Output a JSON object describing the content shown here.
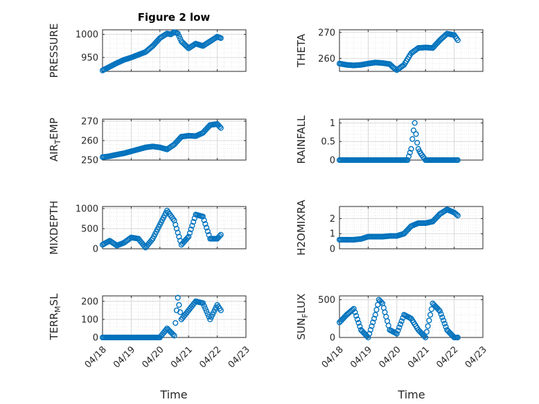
{
  "title": "Figure 2 low",
  "marker_color": "#0072bd",
  "x_tick_labels": [
    "04/18",
    "04/19",
    "04/20",
    "04/21",
    "04/22",
    "04/23"
  ],
  "x_axis_label": "Time",
  "chart_data": [
    {
      "type": "scatter",
      "panel": "top-left",
      "ylabel": "PRESSURE",
      "ylim": [
        920,
        1010
      ],
      "yticks": [
        950,
        1000
      ],
      "ytick_labels": [
        "950",
        "1000"
      ],
      "grid": true,
      "show_x_ticks": false,
      "x": [
        "04/18 00:00",
        "04/18 06:00",
        "04/18 12:00",
        "04/18 18:00",
        "04/19 00:00",
        "04/19 06:00",
        "04/19 12:00",
        "04/19 18:00",
        "04/20 00:00",
        "04/20 06:00",
        "04/20 09:00",
        "04/20 12:00",
        "04/20 15:00",
        "04/20 18:00",
        "04/21 00:00",
        "04/21 06:00",
        "04/21 12:00",
        "04/21 18:00",
        "04/22 00:00",
        "04/22 03:00"
      ],
      "y": [
        922,
        930,
        938,
        945,
        950,
        956,
        962,
        975,
        992,
        1002,
        1000,
        1005,
        1002,
        985,
        970,
        980,
        975,
        985,
        995,
        992
      ]
    },
    {
      "type": "scatter",
      "panel": "top-right",
      "ylabel": "THETA",
      "ylim": [
        255,
        271
      ],
      "yticks": [
        260,
        270
      ],
      "ytick_labels": [
        "260",
        "270"
      ],
      "grid": true,
      "show_x_ticks": false,
      "x": [
        "04/18 00:00",
        "04/18 06:00",
        "04/18 12:00",
        "04/18 18:00",
        "04/19 00:00",
        "04/19 06:00",
        "04/19 12:00",
        "04/19 18:00",
        "04/19 21:00",
        "04/20 00:00",
        "04/20 06:00",
        "04/20 12:00",
        "04/20 18:00",
        "04/21 00:00",
        "04/21 06:00",
        "04/21 12:00",
        "04/21 18:00",
        "04/22 00:00",
        "04/22 03:00"
      ],
      "y": [
        258,
        257.5,
        257.3,
        257.5,
        258,
        258.4,
        258.2,
        257.8,
        256.5,
        255.5,
        257.5,
        262,
        264,
        264.2,
        264,
        267,
        269.5,
        269,
        267
      ]
    },
    {
      "type": "scatter",
      "panel": "row2-left",
      "ylabel": "AIR_TEMP",
      "ylim": [
        250,
        271
      ],
      "yticks": [
        250,
        260,
        270
      ],
      "ytick_labels": [
        "250",
        "260",
        "270"
      ],
      "grid": true,
      "show_x_ticks": false,
      "x": [
        "04/18 00:00",
        "04/18 06:00",
        "04/18 12:00",
        "04/18 18:00",
        "04/19 00:00",
        "04/19 06:00",
        "04/19 12:00",
        "04/19 18:00",
        "04/20 00:00",
        "04/20 06:00",
        "04/20 12:00",
        "04/20 18:00",
        "04/21 00:00",
        "04/21 06:00",
        "04/21 12:00",
        "04/21 18:00",
        "04/22 00:00",
        "04/22 03:00"
      ],
      "y": [
        251.5,
        252,
        252.8,
        253.5,
        254.5,
        255.5,
        256.5,
        257,
        256.5,
        255.5,
        258,
        262,
        262.5,
        262.3,
        264,
        268,
        268.5,
        266.5
      ]
    },
    {
      "type": "scatter",
      "panel": "row2-right",
      "ylabel": "RAINFALL",
      "ylim": [
        0,
        1.1
      ],
      "yticks": [
        0,
        0.5,
        1
      ],
      "ytick_labels": [
        "0",
        "0.5",
        "1"
      ],
      "grid": true,
      "show_x_ticks": false,
      "x": [
        "04/18 00:00",
        "04/18 12:00",
        "04/19 00:00",
        "04/19 12:00",
        "04/20 00:00",
        "04/20 09:00",
        "04/20 12:00",
        "04/20 13:30",
        "04/20 15:00",
        "04/20 16:30",
        "04/20 18:00",
        "04/20 19:30",
        "04/21 00:00",
        "04/21 12:00",
        "04/22 00:00",
        "04/22 03:00"
      ],
      "y": [
        0,
        0,
        0,
        0,
        0,
        0,
        0.3,
        0.7,
        1.0,
        0.55,
        0.3,
        0.2,
        0,
        0,
        0,
        0
      ]
    },
    {
      "type": "scatter",
      "panel": "row3-left",
      "ylabel": "MIXDEPTH",
      "ylim": [
        0,
        1050
      ],
      "yticks": [
        0,
        500,
        1000
      ],
      "ytick_labels": [
        "0",
        "500",
        "1000"
      ],
      "grid": true,
      "show_x_ticks": false,
      "x": [
        "04/18 00:00",
        "04/18 06:00",
        "04/18 12:00",
        "04/18 18:00",
        "04/19 00:00",
        "04/19 06:00",
        "04/19 12:00",
        "04/19 18:00",
        "04/20 00:00",
        "04/20 06:00",
        "04/20 12:00",
        "04/20 18:00",
        "04/21 00:00",
        "04/21 06:00",
        "04/21 12:00",
        "04/21 18:00",
        "04/22 00:00",
        "04/22 03:00"
      ],
      "y": [
        100,
        200,
        80,
        150,
        280,
        250,
        30,
        250,
        600,
        950,
        700,
        100,
        300,
        850,
        800,
        250,
        250,
        350
      ]
    },
    {
      "type": "scatter",
      "panel": "row3-right",
      "ylabel": "H2OMIXRA",
      "ylim": [
        0,
        2.8
      ],
      "yticks": [
        0,
        1,
        2
      ],
      "ytick_labels": [
        "0",
        "1",
        "2"
      ],
      "grid": true,
      "show_x_ticks": false,
      "x": [
        "04/18 00:00",
        "04/18 06:00",
        "04/18 12:00",
        "04/18 18:00",
        "04/19 00:00",
        "04/19 06:00",
        "04/19 12:00",
        "04/19 18:00",
        "04/20 00:00",
        "04/20 06:00",
        "04/20 12:00",
        "04/20 18:00",
        "04/21 00:00",
        "04/21 06:00",
        "04/21 12:00",
        "04/21 18:00",
        "04/22 00:00",
        "04/22 03:00"
      ],
      "y": [
        0.6,
        0.6,
        0.6,
        0.65,
        0.8,
        0.8,
        0.8,
        0.85,
        0.85,
        1.0,
        1.5,
        1.7,
        1.7,
        1.8,
        2.3,
        2.6,
        2.4,
        2.2
      ]
    },
    {
      "type": "scatter",
      "panel": "row4-left",
      "ylabel": "TERR_MSL",
      "ylim": [
        0,
        230
      ],
      "yticks": [
        0,
        100,
        200
      ],
      "ytick_labels": [
        "0",
        "100",
        "200"
      ],
      "grid": true,
      "show_x_ticks": true,
      "x": [
        "04/18 00:00",
        "04/18 12:00",
        "04/19 00:00",
        "04/19 12:00",
        "04/20 00:00",
        "04/20 06:00",
        "04/20 12:00",
        "04/20 15:00",
        "04/20 18:00",
        "04/21 00:00",
        "04/21 06:00",
        "04/21 12:00",
        "04/21 18:00",
        "04/22 00:00",
        "04/22 03:00"
      ],
      "y": [
        0,
        0,
        0,
        0,
        0,
        50,
        10,
        220,
        100,
        150,
        200,
        190,
        100,
        180,
        150
      ]
    },
    {
      "type": "scatter",
      "panel": "row4-right",
      "ylabel": "SUN_FLUX",
      "ylim": [
        0,
        550
      ],
      "yticks": [
        0,
        500
      ],
      "ytick_labels": [
        "0",
        "500"
      ],
      "grid": true,
      "show_x_ticks": true,
      "x": [
        "04/18 00:00",
        "04/18 06:00",
        "04/18 12:00",
        "04/18 18:00",
        "04/19 00:00",
        "04/19 06:00",
        "04/19 09:00",
        "04/19 12:00",
        "04/19 18:00",
        "04/20 00:00",
        "04/20 06:00",
        "04/20 12:00",
        "04/20 18:00",
        "04/21 00:00",
        "04/21 06:00",
        "04/21 12:00",
        "04/21 18:00",
        "04/22 00:00",
        "04/22 03:00"
      ],
      "y": [
        200,
        300,
        380,
        100,
        0,
        300,
        500,
        450,
        100,
        50,
        300,
        250,
        100,
        0,
        450,
        350,
        100,
        0,
        0
      ]
    }
  ]
}
